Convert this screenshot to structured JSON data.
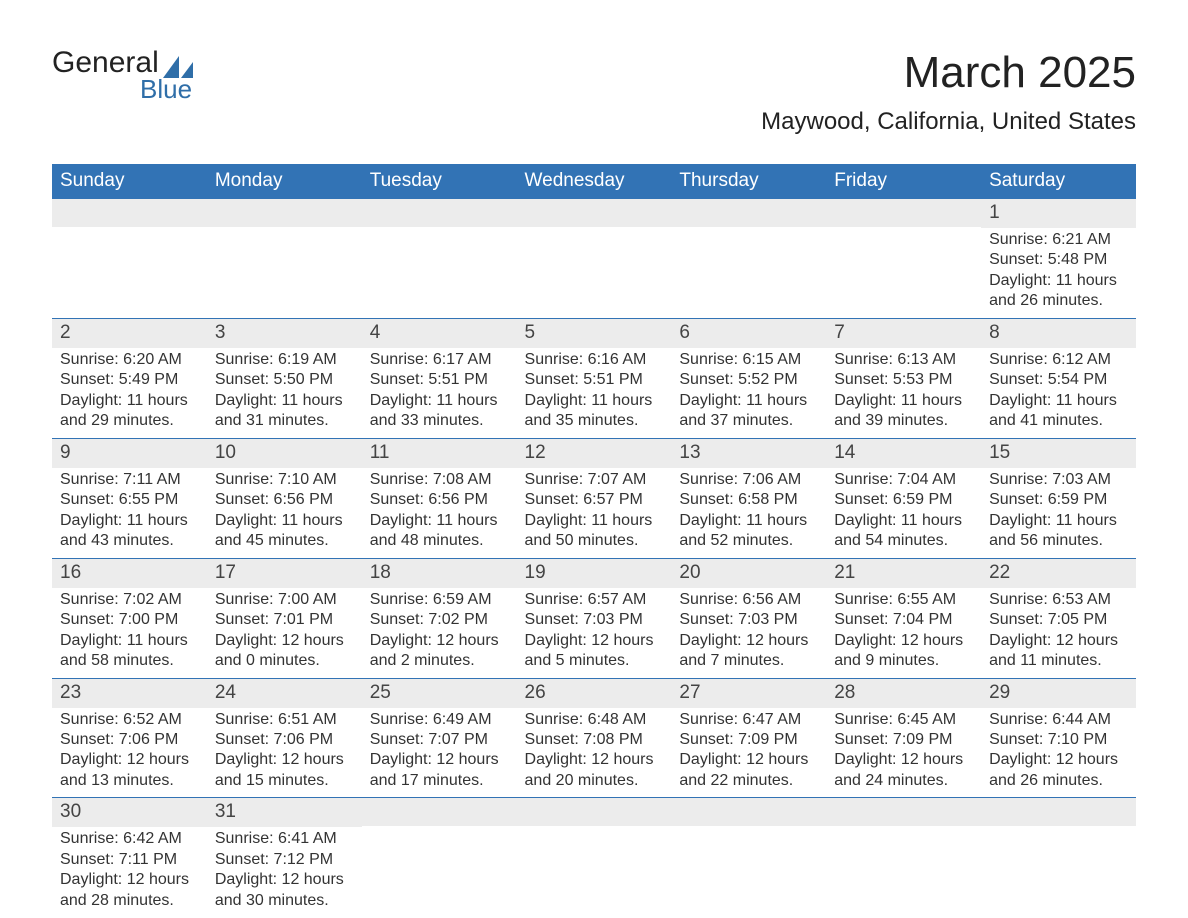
{
  "logo": {
    "text_top": "General",
    "text_bottom": "Blue",
    "accent_color": "#2f6ea8"
  },
  "title": {
    "month_year": "March 2025",
    "location": "Maywood, California, United States"
  },
  "colors": {
    "header_bg": "#3273b5",
    "header_fg": "#ffffff",
    "daynum_bg": "#ececec",
    "row_border": "#3273b5",
    "body_text": "#333333",
    "page_bg": "#ffffff"
  },
  "typography": {
    "title_fontsize": 44,
    "location_fontsize": 24,
    "header_fontsize": 19,
    "daynum_fontsize": 19,
    "body_fontsize": 16
  },
  "layout": {
    "columns": 7,
    "rows": 6,
    "first_day_column": 6
  },
  "day_labels": [
    "Sunday",
    "Monday",
    "Tuesday",
    "Wednesday",
    "Thursday",
    "Friday",
    "Saturday"
  ],
  "weeks": [
    [
      {
        "blank": true
      },
      {
        "blank": true
      },
      {
        "blank": true
      },
      {
        "blank": true
      },
      {
        "blank": true
      },
      {
        "blank": true
      },
      {
        "day": "1",
        "sunrise": "Sunrise: 6:21 AM",
        "sunset": "Sunset: 5:48 PM",
        "daylight": "Daylight: 11 hours and 26 minutes."
      }
    ],
    [
      {
        "day": "2",
        "sunrise": "Sunrise: 6:20 AM",
        "sunset": "Sunset: 5:49 PM",
        "daylight": "Daylight: 11 hours and 29 minutes."
      },
      {
        "day": "3",
        "sunrise": "Sunrise: 6:19 AM",
        "sunset": "Sunset: 5:50 PM",
        "daylight": "Daylight: 11 hours and 31 minutes."
      },
      {
        "day": "4",
        "sunrise": "Sunrise: 6:17 AM",
        "sunset": "Sunset: 5:51 PM",
        "daylight": "Daylight: 11 hours and 33 minutes."
      },
      {
        "day": "5",
        "sunrise": "Sunrise: 6:16 AM",
        "sunset": "Sunset: 5:51 PM",
        "daylight": "Daylight: 11 hours and 35 minutes."
      },
      {
        "day": "6",
        "sunrise": "Sunrise: 6:15 AM",
        "sunset": "Sunset: 5:52 PM",
        "daylight": "Daylight: 11 hours and 37 minutes."
      },
      {
        "day": "7",
        "sunrise": "Sunrise: 6:13 AM",
        "sunset": "Sunset: 5:53 PM",
        "daylight": "Daylight: 11 hours and 39 minutes."
      },
      {
        "day": "8",
        "sunrise": "Sunrise: 6:12 AM",
        "sunset": "Sunset: 5:54 PM",
        "daylight": "Daylight: 11 hours and 41 minutes."
      }
    ],
    [
      {
        "day": "9",
        "sunrise": "Sunrise: 7:11 AM",
        "sunset": "Sunset: 6:55 PM",
        "daylight": "Daylight: 11 hours and 43 minutes."
      },
      {
        "day": "10",
        "sunrise": "Sunrise: 7:10 AM",
        "sunset": "Sunset: 6:56 PM",
        "daylight": "Daylight: 11 hours and 45 minutes."
      },
      {
        "day": "11",
        "sunrise": "Sunrise: 7:08 AM",
        "sunset": "Sunset: 6:56 PM",
        "daylight": "Daylight: 11 hours and 48 minutes."
      },
      {
        "day": "12",
        "sunrise": "Sunrise: 7:07 AM",
        "sunset": "Sunset: 6:57 PM",
        "daylight": "Daylight: 11 hours and 50 minutes."
      },
      {
        "day": "13",
        "sunrise": "Sunrise: 7:06 AM",
        "sunset": "Sunset: 6:58 PM",
        "daylight": "Daylight: 11 hours and 52 minutes."
      },
      {
        "day": "14",
        "sunrise": "Sunrise: 7:04 AM",
        "sunset": "Sunset: 6:59 PM",
        "daylight": "Daylight: 11 hours and 54 minutes."
      },
      {
        "day": "15",
        "sunrise": "Sunrise: 7:03 AM",
        "sunset": "Sunset: 6:59 PM",
        "daylight": "Daylight: 11 hours and 56 minutes."
      }
    ],
    [
      {
        "day": "16",
        "sunrise": "Sunrise: 7:02 AM",
        "sunset": "Sunset: 7:00 PM",
        "daylight": "Daylight: 11 hours and 58 minutes."
      },
      {
        "day": "17",
        "sunrise": "Sunrise: 7:00 AM",
        "sunset": "Sunset: 7:01 PM",
        "daylight": "Daylight: 12 hours and 0 minutes."
      },
      {
        "day": "18",
        "sunrise": "Sunrise: 6:59 AM",
        "sunset": "Sunset: 7:02 PM",
        "daylight": "Daylight: 12 hours and 2 minutes."
      },
      {
        "day": "19",
        "sunrise": "Sunrise: 6:57 AM",
        "sunset": "Sunset: 7:03 PM",
        "daylight": "Daylight: 12 hours and 5 minutes."
      },
      {
        "day": "20",
        "sunrise": "Sunrise: 6:56 AM",
        "sunset": "Sunset: 7:03 PM",
        "daylight": "Daylight: 12 hours and 7 minutes."
      },
      {
        "day": "21",
        "sunrise": "Sunrise: 6:55 AM",
        "sunset": "Sunset: 7:04 PM",
        "daylight": "Daylight: 12 hours and 9 minutes."
      },
      {
        "day": "22",
        "sunrise": "Sunrise: 6:53 AM",
        "sunset": "Sunset: 7:05 PM",
        "daylight": "Daylight: 12 hours and 11 minutes."
      }
    ],
    [
      {
        "day": "23",
        "sunrise": "Sunrise: 6:52 AM",
        "sunset": "Sunset: 7:06 PM",
        "daylight": "Daylight: 12 hours and 13 minutes."
      },
      {
        "day": "24",
        "sunrise": "Sunrise: 6:51 AM",
        "sunset": "Sunset: 7:06 PM",
        "daylight": "Daylight: 12 hours and 15 minutes."
      },
      {
        "day": "25",
        "sunrise": "Sunrise: 6:49 AM",
        "sunset": "Sunset: 7:07 PM",
        "daylight": "Daylight: 12 hours and 17 minutes."
      },
      {
        "day": "26",
        "sunrise": "Sunrise: 6:48 AM",
        "sunset": "Sunset: 7:08 PM",
        "daylight": "Daylight: 12 hours and 20 minutes."
      },
      {
        "day": "27",
        "sunrise": "Sunrise: 6:47 AM",
        "sunset": "Sunset: 7:09 PM",
        "daylight": "Daylight: 12 hours and 22 minutes."
      },
      {
        "day": "28",
        "sunrise": "Sunrise: 6:45 AM",
        "sunset": "Sunset: 7:09 PM",
        "daylight": "Daylight: 12 hours and 24 minutes."
      },
      {
        "day": "29",
        "sunrise": "Sunrise: 6:44 AM",
        "sunset": "Sunset: 7:10 PM",
        "daylight": "Daylight: 12 hours and 26 minutes."
      }
    ],
    [
      {
        "day": "30",
        "sunrise": "Sunrise: 6:42 AM",
        "sunset": "Sunset: 7:11 PM",
        "daylight": "Daylight: 12 hours and 28 minutes."
      },
      {
        "day": "31",
        "sunrise": "Sunrise: 6:41 AM",
        "sunset": "Sunset: 7:12 PM",
        "daylight": "Daylight: 12 hours and 30 minutes."
      },
      {
        "blank": true
      },
      {
        "blank": true
      },
      {
        "blank": true
      },
      {
        "blank": true
      },
      {
        "blank": true
      }
    ]
  ]
}
